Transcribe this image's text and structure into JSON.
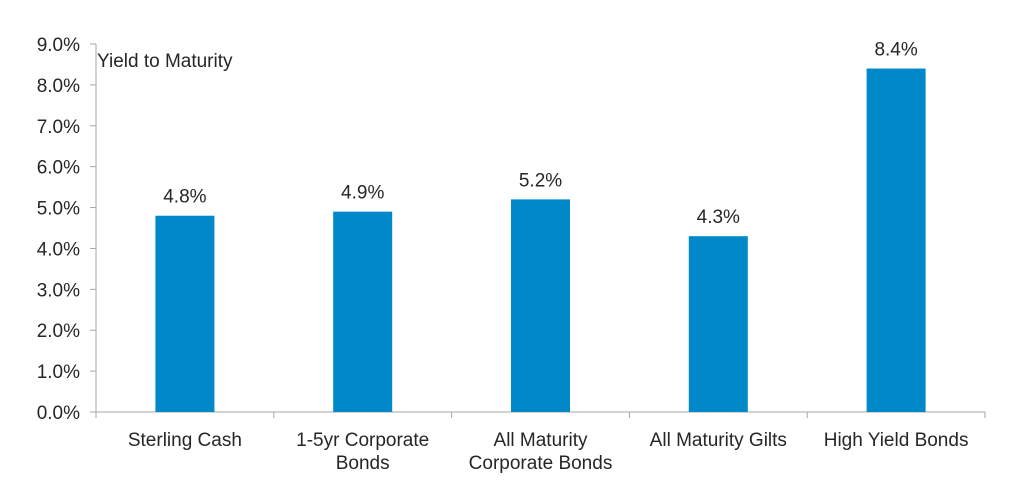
{
  "chart_data": {
    "type": "bar",
    "title": "Yield to Maturity",
    "categories": [
      [
        "Sterling Cash"
      ],
      [
        "1-5yr Corporate",
        "Bonds"
      ],
      [
        "All Maturity",
        "Corporate Bonds"
      ],
      [
        "All Maturity Gilts"
      ],
      [
        "High Yield Bonds"
      ]
    ],
    "values": [
      4.8,
      4.9,
      5.2,
      4.3,
      8.4
    ],
    "value_labels": [
      "4.8%",
      "4.9%",
      "5.2%",
      "4.3%",
      "8.4%"
    ],
    "ylim": [
      0,
      9
    ],
    "yticks": [
      0,
      1,
      2,
      3,
      4,
      5,
      6,
      7,
      8,
      9
    ],
    "ytick_labels": [
      "0.0%",
      "1.0%",
      "2.0%",
      "3.0%",
      "4.0%",
      "5.0%",
      "6.0%",
      "7.0%",
      "8.0%",
      "9.0%"
    ],
    "xlabel": "",
    "ylabel": "",
    "grid": false,
    "bar_color": "#0088C9",
    "axis_color": "#A6A6A6"
  }
}
